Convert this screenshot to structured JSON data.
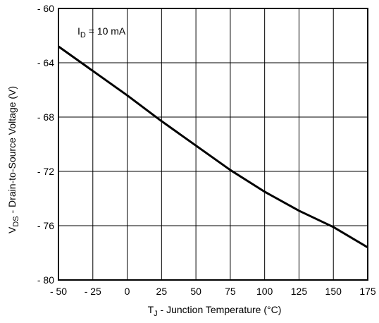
{
  "chart_data": {
    "type": "line",
    "title": "",
    "xlabel": {
      "main": "T",
      "sub": "J",
      "rest": " - Junction Temperature (°C)"
    },
    "ylabel": {
      "main": "V",
      "sub": "DS",
      "rest": " - Drain-to-Source Voltage (V)"
    },
    "xlim": [
      -50,
      175
    ],
    "ylim": [
      -80,
      -60
    ],
    "x_ticks": [
      -50,
      -25,
      0,
      25,
      50,
      75,
      100,
      125,
      150,
      175
    ],
    "x_tick_labels": [
      "- 50",
      "- 25",
      "0",
      "25",
      "50",
      "75",
      "100",
      "125",
      "150",
      "175"
    ],
    "y_ticks": [
      -60,
      -64,
      -68,
      -72,
      -76,
      -80
    ],
    "y_tick_labels": [
      "- 60",
      "- 64",
      "- 68",
      "- 72",
      "- 76",
      "- 80"
    ],
    "grid": true,
    "annotation": {
      "main": "I",
      "sub": "D",
      "rest": " = 10 mA"
    },
    "series": [
      {
        "x": [
          -50,
          -25,
          0,
          25,
          50,
          75,
          100,
          125,
          150,
          175
        ],
        "y": [
          -62.8,
          -64.6,
          -66.4,
          -68.3,
          -70.1,
          -71.9,
          -73.5,
          -74.9,
          -76.1,
          -77.6
        ]
      }
    ]
  }
}
